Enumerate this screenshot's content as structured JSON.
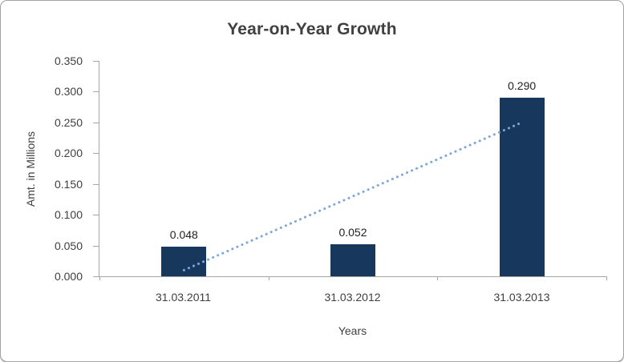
{
  "chart_data": {
    "type": "bar",
    "title": "Year-on-Year Growth",
    "xlabel": "Years",
    "ylabel": "Amt. in Millions",
    "categories": [
      "31.03.2011",
      "31.03.2012",
      "31.03.2013"
    ],
    "values": [
      0.048,
      0.052,
      0.29
    ],
    "value_labels": [
      "0.048",
      "0.052",
      "0.290"
    ],
    "ylim": [
      0,
      0.35
    ],
    "ytick_step": 0.05,
    "ytick_labels": [
      "0.000",
      "0.050",
      "0.100",
      "0.150",
      "0.200",
      "0.250",
      "0.300",
      "0.350"
    ],
    "grid": false,
    "legend": "none",
    "colors": {
      "bar": "#17375D",
      "trendline": "#7DA7D9",
      "axis": "#A6A6A6",
      "title_text": "#404040",
      "tick_text": "#3F3F3F",
      "label_text": "#1F1F1F"
    },
    "trendline": {
      "style": "dotted",
      "start": {
        "category_index": 0,
        "value": 0.01
      },
      "end": {
        "category_index": 2,
        "value": 0.25
      }
    }
  }
}
